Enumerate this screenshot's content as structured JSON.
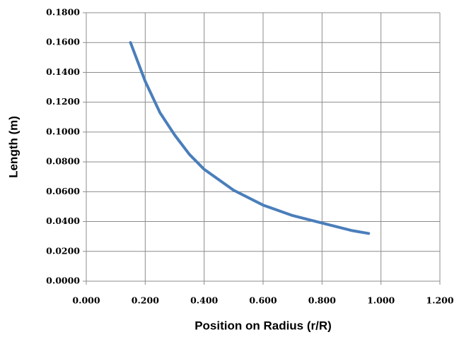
{
  "chart_data": {
    "type": "line",
    "x_label": "Position on Radius (r/R)",
    "y_label": "Length (m)",
    "x": [
      0.15,
      0.2,
      0.25,
      0.3,
      0.35,
      0.4,
      0.5,
      0.6,
      0.7,
      0.8,
      0.9,
      0.958
    ],
    "series": [
      {
        "name": "Length",
        "color": "#4a7ebb",
        "values": [
          0.16,
          0.134,
          0.113,
          0.098,
          0.085,
          0.075,
          0.061,
          0.051,
          0.044,
          0.039,
          0.034,
          0.032
        ]
      }
    ],
    "xlim": [
      0,
      1.2
    ],
    "xticks": [
      {
        "value": 0,
        "label": "0.000"
      },
      {
        "value": 0.2,
        "label": "0.200"
      },
      {
        "value": 0.4,
        "label": "0.400"
      },
      {
        "value": 0.6,
        "label": "0.600"
      },
      {
        "value": 0.8,
        "label": "0.800"
      },
      {
        "value": 1,
        "label": "1.000"
      },
      {
        "value": 1.2,
        "label": "1.200"
      }
    ],
    "ylim": [
      0,
      0.18
    ],
    "yticks": [
      {
        "value": 0,
        "label": "0.0000"
      },
      {
        "value": 0.02,
        "label": "0.0200"
      },
      {
        "value": 0.04,
        "label": "0.0400"
      },
      {
        "value": 0.06,
        "label": "0.0600"
      },
      {
        "value": 0.08,
        "label": "0.0800"
      },
      {
        "value": 0.1,
        "label": "0.1000"
      },
      {
        "value": 0.12,
        "label": "0.1200"
      },
      {
        "value": 0.14,
        "label": "0.1400"
      },
      {
        "value": 0.16,
        "label": "0.1600"
      },
      {
        "value": 0.18,
        "label": "0.1800"
      }
    ],
    "grid": true
  }
}
